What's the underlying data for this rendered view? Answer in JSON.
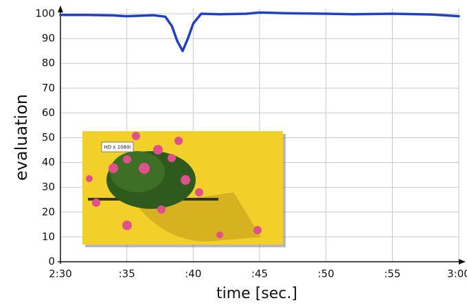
{
  "chart_data": {
    "type": "line",
    "x_label": "time [sec.]",
    "y_label": "evaluation",
    "inset_label": "HD x 1080i",
    "xlim": [
      150,
      180
    ],
    "ylim": [
      0,
      100
    ],
    "xticks": [
      {
        "value": 150,
        "label": "2:30"
      },
      {
        "value": 155,
        "label": ":35"
      },
      {
        "value": 160,
        "label": ":40"
      },
      {
        "value": 165,
        "label": ":45"
      },
      {
        "value": 170,
        "label": ":50"
      },
      {
        "value": 175,
        "label": ":55"
      },
      {
        "value": 180,
        "label": "3:00"
      }
    ],
    "yticks": [
      0,
      10,
      20,
      30,
      40,
      50,
      60,
      70,
      80,
      90,
      100
    ],
    "grid": true,
    "series": [
      {
        "color": "#1f3fc4",
        "x": [
          150,
          152,
          154,
          155,
          156,
          157,
          157.9,
          158.4,
          158.8,
          159.2,
          159.6,
          160,
          160.6,
          162,
          164,
          165,
          167,
          170,
          172,
          175,
          178,
          180
        ],
        "values": [
          99.5,
          99.5,
          99.3,
          99,
          99.2,
          99.4,
          98.8,
          95,
          89,
          85,
          90,
          96,
          100,
          99.8,
          100,
          100.5,
          100.2,
          100,
          99.8,
          100,
          99.7,
          99
        ]
      }
    ]
  }
}
